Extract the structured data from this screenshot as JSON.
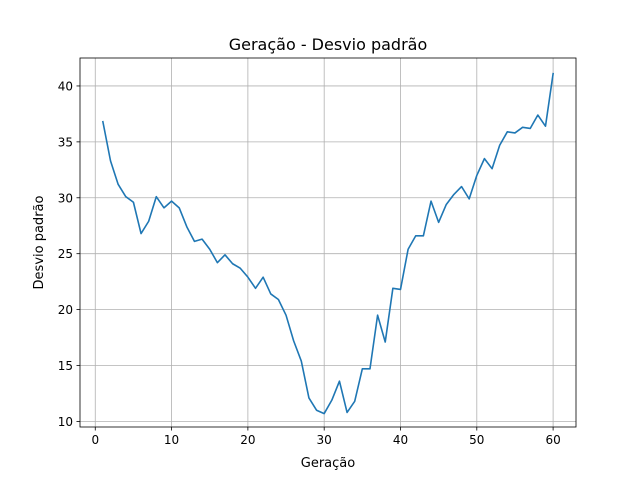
{
  "chart_data": {
    "type": "line",
    "title": "Geração - Desvio padrão",
    "xlabel": "Geração",
    "ylabel": "Desvio padrão",
    "xlim": [
      -2,
      63
    ],
    "ylim": [
      9.5,
      42.5
    ],
    "xticks": [
      0,
      10,
      20,
      30,
      40,
      50,
      60
    ],
    "yticks": [
      10,
      15,
      20,
      25,
      30,
      35,
      40
    ],
    "grid": true,
    "colors": {
      "line": "#1f77b4",
      "grid": "#b0b0b0",
      "axes": "#000000"
    },
    "series": [
      {
        "x": [
          1,
          2,
          3,
          4,
          5,
          6,
          7,
          8,
          9,
          10,
          11,
          12,
          13,
          14,
          15,
          16,
          17,
          18,
          19,
          20,
          21,
          22,
          23,
          24,
          25,
          26,
          27,
          28,
          29,
          30,
          31,
          32,
          33,
          34,
          35,
          36,
          37,
          38,
          39,
          40,
          41,
          42,
          43,
          44,
          45,
          46,
          47,
          48,
          49,
          50,
          51,
          52,
          53,
          54,
          55,
          56,
          57,
          58,
          59,
          60
        ],
        "values": [
          36.8,
          33.3,
          31.2,
          30.1,
          29.6,
          26.8,
          27.9,
          30.1,
          29.1,
          29.7,
          29.1,
          27.4,
          26.1,
          26.3,
          25.4,
          24.2,
          24.9,
          24.1,
          23.7,
          22.9,
          21.9,
          22.9,
          21.4,
          20.9,
          19.5,
          17.2,
          15.4,
          12.1,
          11.0,
          10.7,
          11.9,
          13.6,
          10.8,
          11.8,
          14.7,
          14.7,
          19.5,
          17.1,
          21.9,
          21.8,
          25.4,
          26.6,
          26.6,
          29.7,
          27.8,
          29.4,
          30.3,
          31.0,
          29.9,
          32.0,
          33.5,
          32.6,
          34.7,
          35.9,
          35.8,
          36.3,
          36.2,
          37.4,
          36.4,
          41.1
        ]
      }
    ]
  }
}
